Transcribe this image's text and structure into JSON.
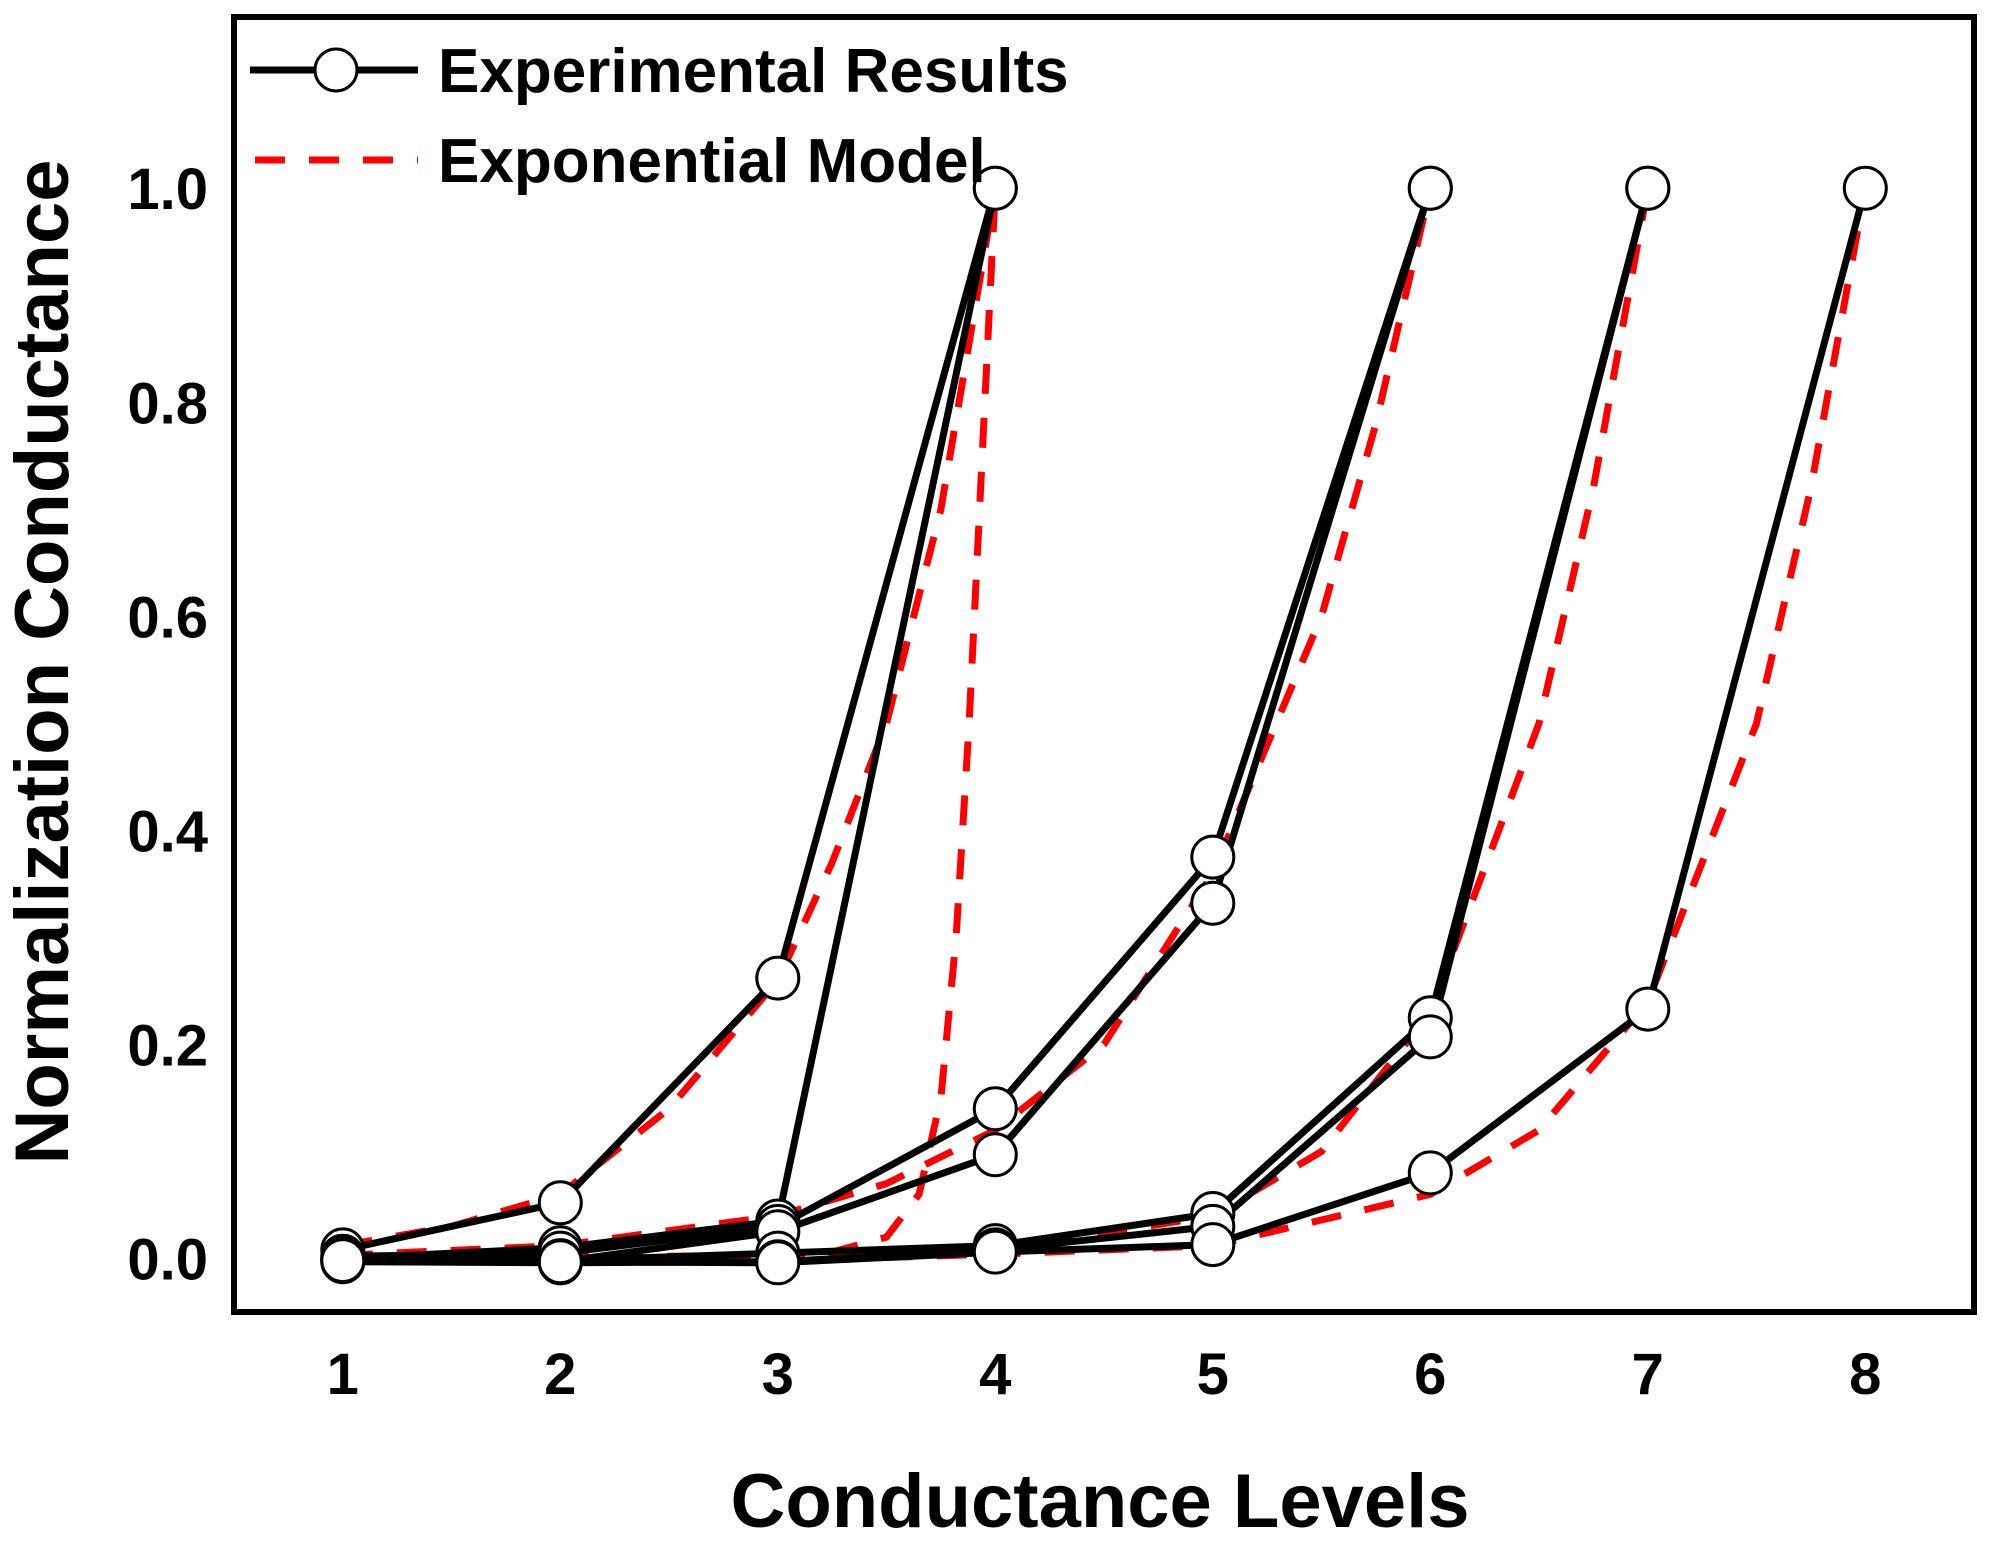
{
  "chart_data": {
    "type": "line",
    "title": "",
    "xlabel": "Conductance Levels",
    "ylabel": "Normalization Conductance",
    "xlim": [
      0.5,
      8.5
    ],
    "ylim": [
      -0.05,
      1.16
    ],
    "xticks": [
      1,
      2,
      3,
      4,
      5,
      6,
      7,
      8
    ],
    "xtick_labels": [
      "1",
      "2",
      "3",
      "4",
      "5",
      "6",
      "7",
      "8"
    ],
    "yticks": [
      0.0,
      0.2,
      0.4,
      0.6,
      0.8,
      1.0
    ],
    "ytick_labels": [
      "0.0",
      "0.2",
      "0.4",
      "0.6",
      "0.8",
      "1.0"
    ],
    "grid": false,
    "legend_position": "top-left",
    "legend": [
      {
        "label": "Experimental Results",
        "style": "solid",
        "marker": "open-circle",
        "color": "#000000"
      },
      {
        "label": "Exponential Model",
        "style": "dashed",
        "marker": "none",
        "color": "#ff0000"
      }
    ],
    "series": [
      {
        "name": "Experimental Results",
        "group": "experimental",
        "x": [
          1,
          2,
          3,
          4
        ],
        "y": [
          0.008,
          0.052,
          0.262,
          1.0
        ]
      },
      {
        "name": "Experimental Results",
        "group": "experimental",
        "x": [
          1,
          2,
          3,
          4
        ],
        "y": [
          0.0,
          0.01,
          0.035,
          1.0
        ]
      },
      {
        "name": "Experimental Results",
        "group": "experimental",
        "x": [
          1,
          2,
          3,
          4,
          5,
          6
        ],
        "y": [
          0.002,
          0.005,
          0.03,
          0.14,
          0.375,
          1.0
        ]
      },
      {
        "name": "Experimental Results",
        "group": "experimental",
        "x": [
          1,
          2,
          3,
          4,
          5,
          6
        ],
        "y": [
          -0.002,
          -0.003,
          0.025,
          0.097,
          0.332,
          1.0
        ]
      },
      {
        "name": "Experimental Results",
        "group": "experimental",
        "x": [
          1,
          2,
          3,
          4,
          5,
          6,
          7
        ],
        "y": [
          0.0,
          -0.002,
          0.005,
          0.012,
          0.042,
          0.225,
          1.0
        ]
      },
      {
        "name": "Experimental Results",
        "group": "experimental",
        "x": [
          1,
          2,
          3,
          4,
          5,
          6,
          7
        ],
        "y": [
          -0.003,
          -0.004,
          -0.003,
          0.008,
          0.03,
          0.207,
          1.0
        ]
      },
      {
        "name": "Experimental Results",
        "group": "experimental",
        "x": [
          1,
          2,
          3,
          4,
          5,
          6,
          7,
          8
        ],
        "y": [
          -0.002,
          -0.003,
          -0.004,
          0.006,
          0.013,
          0.08,
          0.233,
          1.0
        ]
      },
      {
        "name": "Exponential Model",
        "group": "model",
        "x": [
          1,
          1.5,
          2,
          2.5,
          3,
          3.25,
          3.5,
          3.75,
          4
        ],
        "y": [
          0.012,
          0.03,
          0.06,
          0.14,
          0.26,
          0.37,
          0.5,
          0.7,
          1.0
        ]
      },
      {
        "name": "Exponential Model",
        "group": "model",
        "x": [
          1,
          1.5,
          2,
          2.5,
          3,
          3.25,
          3.5,
          3.65,
          3.75,
          3.82,
          3.88,
          3.94,
          4
        ],
        "y": [
          0.0,
          0.001,
          0.002,
          0.002,
          0.003,
          0.006,
          0.02,
          0.06,
          0.15,
          0.3,
          0.5,
          0.75,
          1.0
        ]
      },
      {
        "name": "Exponential Model",
        "group": "model",
        "x": [
          1,
          2,
          3,
          3.5,
          4,
          4.5,
          5,
          5.5,
          5.75,
          6
        ],
        "y": [
          0.003,
          0.012,
          0.04,
          0.07,
          0.12,
          0.2,
          0.36,
          0.6,
          0.78,
          1.0
        ]
      },
      {
        "name": "Exponential Model",
        "group": "model",
        "x": [
          1,
          2,
          3,
          4,
          5,
          5.5,
          6,
          6.5,
          6.75,
          7
        ],
        "y": [
          0.0,
          0.0,
          0.002,
          0.007,
          0.04,
          0.1,
          0.23,
          0.5,
          0.72,
          1.0
        ]
      },
      {
        "name": "Exponential Model",
        "group": "model",
        "x": [
          1,
          2,
          3,
          4,
          5,
          6,
          6.5,
          7,
          7.5,
          7.75,
          8
        ],
        "y": [
          -0.002,
          -0.002,
          -0.002,
          0.004,
          0.012,
          0.06,
          0.12,
          0.24,
          0.5,
          0.72,
          1.0
        ]
      }
    ]
  }
}
